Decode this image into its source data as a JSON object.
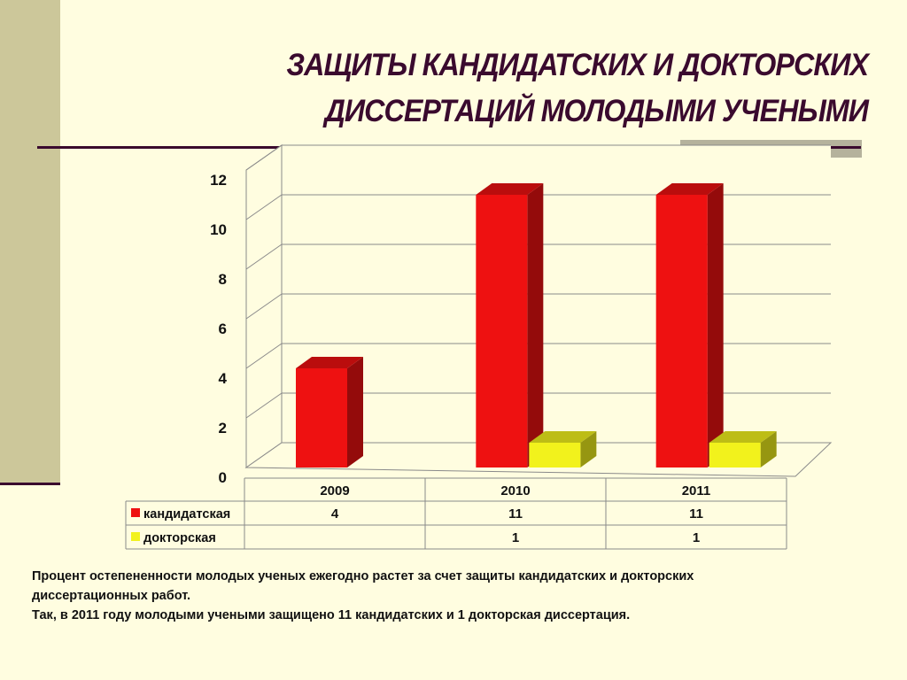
{
  "title_lines": [
    "ЗАЩИТЫ КАНДИДАТСКИХ И ДОКТОРСКИХ",
    "ДИССЕРТАЦИЙ МОЛОДЫМИ УЧЕНЫМИ"
  ],
  "caption_lines": [
    "Процент остепененности молодых ученых ежегодно растет за счет защиты кандидатских и докторских",
    "диссертационных работ.",
    "Так, в 2011 году молодыми учеными защищено 11 кандидатских и 1 докторская диссертация."
  ],
  "colors": {
    "background": "#FFFDE0",
    "title": "#3A0A2E",
    "series_candidate": "#EE1111",
    "series_doctoral": "#F2F21C"
  },
  "chart_data": {
    "type": "bar",
    "categories": [
      "2009",
      "2010",
      "2011"
    ],
    "series": [
      {
        "name": "кандидатская",
        "values": [
          4,
          11,
          11
        ],
        "labels": [
          "4",
          "11",
          "11"
        ],
        "color": "#EE1111"
      },
      {
        "name": "докторская",
        "values": [
          null,
          1,
          1
        ],
        "labels": [
          "",
          "1",
          "1"
        ],
        "color": "#F2F21C"
      }
    ],
    "yticks": [
      0,
      2,
      4,
      6,
      8,
      10,
      12
    ],
    "ylim": [
      0,
      12
    ],
    "grid": true,
    "legend": "data-table",
    "three_d": true
  }
}
